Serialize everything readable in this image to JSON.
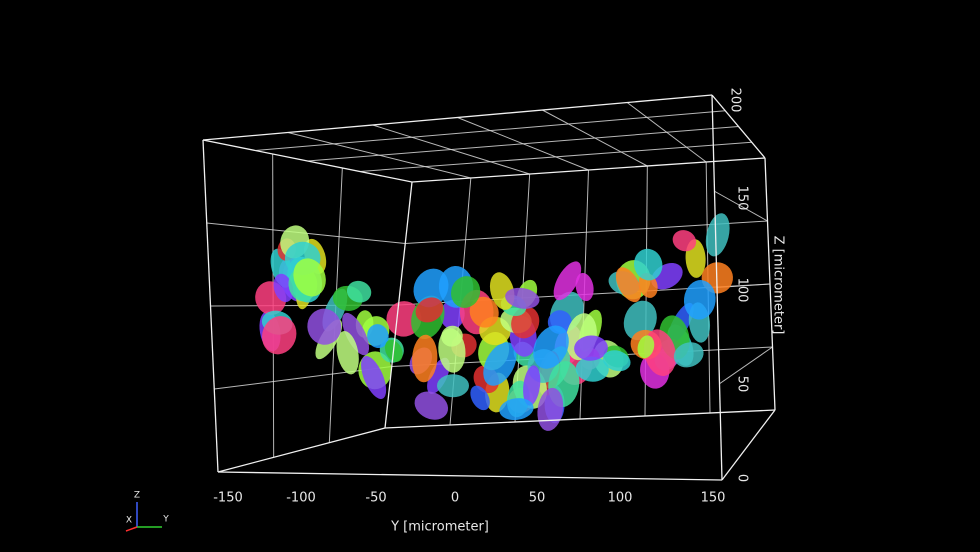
{
  "y_axis": {
    "title": "Y [micrometer]",
    "ticks": [
      "-150",
      "-100",
      "-50",
      "0",
      "50",
      "100",
      "150"
    ]
  },
  "z_axis": {
    "title": "Z [micrometer]",
    "ticks": [
      "0",
      "50",
      "100",
      "150",
      "200"
    ]
  },
  "orientation": {
    "z": "Z",
    "x": "X",
    "y": "Y"
  }
}
